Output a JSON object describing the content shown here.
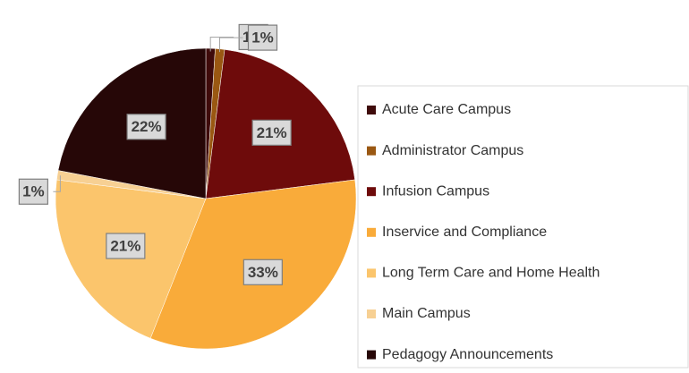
{
  "chart_data": {
    "type": "pie",
    "categories": [
      "Acute Care Campus",
      "Administrator Campus",
      "Infusion Campus",
      "Inservice and Compliance",
      "Long Term Care and Home Health",
      "Main Campus",
      "Pedagogy Announcements"
    ],
    "values": [
      1,
      1,
      21,
      33,
      21,
      1,
      22
    ],
    "value_labels": [
      "1%",
      "1%",
      "21%",
      "33%",
      "21%",
      "1%",
      "22%"
    ],
    "colors": [
      "#3f0b0b",
      "#9a5812",
      "#6e0b0b",
      "#f9ab3a",
      "#fbc56c",
      "#f7d093",
      "#260707"
    ],
    "legend": "right"
  }
}
